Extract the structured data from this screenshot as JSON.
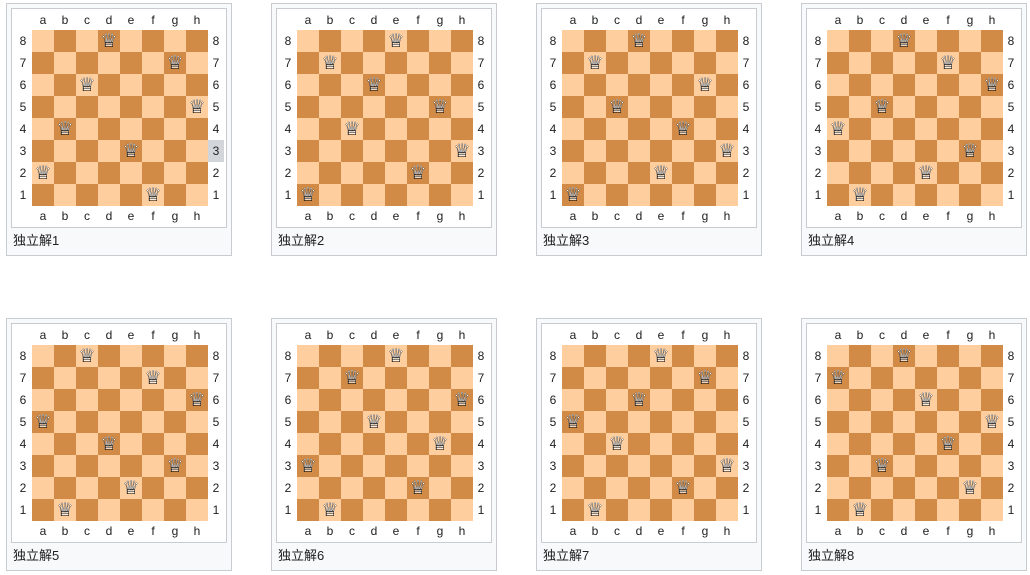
{
  "board_theme": {
    "light_square": "#ffce9e",
    "dark_square": "#d18b47",
    "frame_border": "#c8ccd1",
    "panel_bg": "#f8f9fa",
    "inner_bg": "#ffffff",
    "label_color": "#202122",
    "highlight_bg": "#d2d5d9",
    "queen_fill_color": "#ffffff",
    "queen_outline_color": "#000000",
    "queen_glyph_fill": "♛",
    "queen_glyph_outline": "♕"
  },
  "files": [
    "a",
    "b",
    "c",
    "d",
    "e",
    "f",
    "g",
    "h"
  ],
  "ranks": [
    "8",
    "7",
    "6",
    "5",
    "4",
    "3",
    "2",
    "1"
  ],
  "boards": [
    {
      "caption": "独立解1",
      "queens": [
        "a2",
        "b4",
        "c6",
        "d8",
        "e3",
        "f1",
        "g7",
        "h5"
      ],
      "highlighted_right_rank": "3"
    },
    {
      "caption": "独立解2",
      "queens": [
        "a1",
        "b7",
        "c4",
        "d6",
        "e8",
        "f2",
        "g5",
        "h3"
      ]
    },
    {
      "caption": "独立解3",
      "queens": [
        "a1",
        "b7",
        "c5",
        "d8",
        "e2",
        "f4",
        "g6",
        "h3"
      ]
    },
    {
      "caption": "独立解4",
      "queens": [
        "a4",
        "b1",
        "c5",
        "d8",
        "e2",
        "f7",
        "g3",
        "h6"
      ]
    },
    {
      "caption": "独立解5",
      "queens": [
        "a5",
        "b1",
        "c8",
        "d4",
        "e2",
        "f7",
        "g3",
        "h6"
      ]
    },
    {
      "caption": "独立解6",
      "queens": [
        "a3",
        "b1",
        "c7",
        "d5",
        "e8",
        "f2",
        "g4",
        "h6"
      ]
    },
    {
      "caption": "独立解7",
      "queens": [
        "a5",
        "b1",
        "c4",
        "d6",
        "e8",
        "f2",
        "g7",
        "h3"
      ]
    },
    {
      "caption": "独立解8",
      "queens": [
        "a7",
        "b1",
        "c3",
        "d8",
        "e6",
        "f4",
        "g2",
        "h5"
      ]
    }
  ]
}
